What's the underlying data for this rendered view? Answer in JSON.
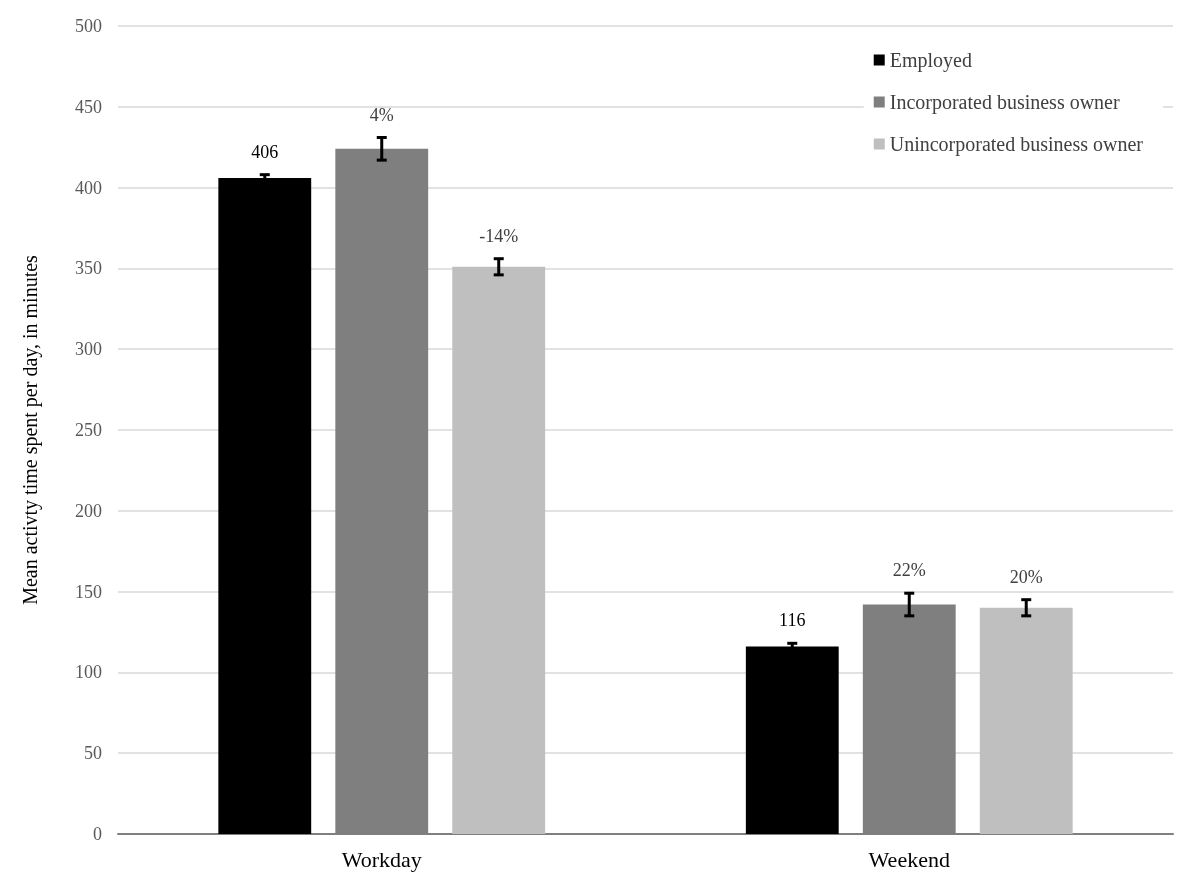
{
  "chart_data": {
    "type": "bar",
    "ylabel": "Mean activty time spent per day, in minutes",
    "categories": [
      "Workday",
      "Weekend"
    ],
    "series": [
      {
        "name": "Employed",
        "color": "#000000",
        "values": [
          406,
          116
        ],
        "errors": [
          2,
          2
        ],
        "value_labels": [
          "406",
          "116"
        ]
      },
      {
        "name": "Incorporated business owner",
        "color": "#7f7f7f",
        "values": [
          424,
          142
        ],
        "errors": [
          7,
          7
        ]
      },
      {
        "name": "Unincorporated business owner",
        "color": "#bfbfbf",
        "values": [
          351,
          140
        ],
        "errors": [
          5,
          5
        ]
      }
    ],
    "annotations": [
      "4%",
      "22%",
      "-14%",
      "20%"
    ],
    "ylim": [
      0,
      500
    ],
    "yticks": [
      0,
      50,
      100,
      150,
      200,
      250,
      300,
      350,
      400,
      450,
      500
    ],
    "grid": "y",
    "legend": "top right"
  }
}
